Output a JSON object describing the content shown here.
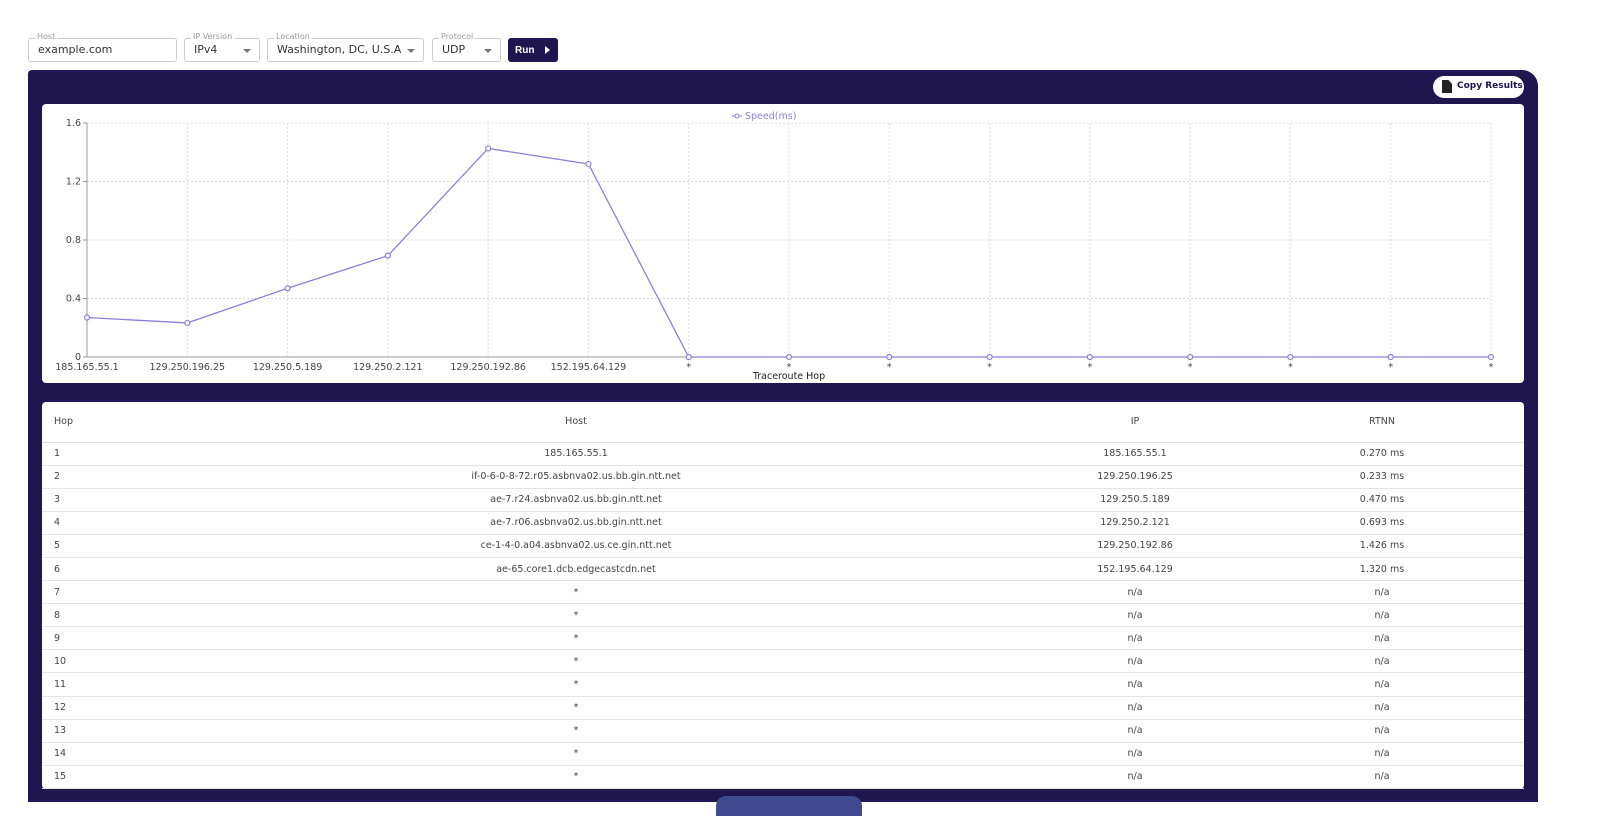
{
  "form": {
    "host": {
      "label": "Host",
      "value": "example.com"
    },
    "ip_version": {
      "label": "IP Version",
      "value": "IPv4"
    },
    "location": {
      "label": "Location",
      "value": "Washington, DC, U.S.A"
    },
    "protocol": {
      "label": "Protocol",
      "value": "UDP"
    },
    "run_label": "Run"
  },
  "copy_label": "Copy Results",
  "chart_data": {
    "type": "line",
    "legend": "Speed(ms)",
    "legend_position": "top-center",
    "xlabel": "Traceroute Hop",
    "ylabel": "",
    "ylim": [
      0,
      1.6
    ],
    "yticks": [
      "0",
      "0.4",
      "0.8",
      "1.2",
      "1.6"
    ],
    "grid": true,
    "color": "#8b80dc",
    "categories": [
      "185.165.55.1",
      "129.250.196.25",
      "129.250.5.189",
      "129.250.2.121",
      "129.250.192.86",
      "152.195.64.129",
      "*",
      "*",
      "*",
      "*",
      "*",
      "*",
      "*",
      "*",
      "*"
    ],
    "values": [
      0.27,
      0.233,
      0.47,
      0.693,
      1.426,
      1.32,
      0,
      0,
      0,
      0,
      0,
      0,
      0,
      0,
      0
    ]
  },
  "table": {
    "headers": [
      "Hop",
      "Host",
      "IP",
      "RTNN"
    ],
    "rows": [
      [
        "1",
        "185.165.55.1",
        "185.165.55.1",
        "0.270 ms"
      ],
      [
        "2",
        "if-0-6-0-8-72.r05.asbnva02.us.bb.gin.ntt.net",
        "129.250.196.25",
        "0.233 ms"
      ],
      [
        "3",
        "ae-7.r24.asbnva02.us.bb.gin.ntt.net",
        "129.250.5.189",
        "0.470 ms"
      ],
      [
        "4",
        "ae-7.r06.asbnva02.us.bb.gin.ntt.net",
        "129.250.2.121",
        "0.693 ms"
      ],
      [
        "5",
        "ce-1-4-0.a04.asbnva02.us.ce.gin.ntt.net",
        "129.250.192.86",
        "1.426 ms"
      ],
      [
        "6",
        "ae-65.core1.dcb.edgecastcdn.net",
        "152.195.64.129",
        "1.320 ms"
      ],
      [
        "7",
        "*",
        "n/a",
        "n/a"
      ],
      [
        "8",
        "*",
        "n/a",
        "n/a"
      ],
      [
        "9",
        "*",
        "n/a",
        "n/a"
      ],
      [
        "10",
        "*",
        "n/a",
        "n/a"
      ],
      [
        "11",
        "*",
        "n/a",
        "n/a"
      ],
      [
        "12",
        "*",
        "n/a",
        "n/a"
      ],
      [
        "13",
        "*",
        "n/a",
        "n/a"
      ],
      [
        "14",
        "*",
        "n/a",
        "n/a"
      ],
      [
        "15",
        "*",
        "n/a",
        "n/a"
      ]
    ]
  }
}
